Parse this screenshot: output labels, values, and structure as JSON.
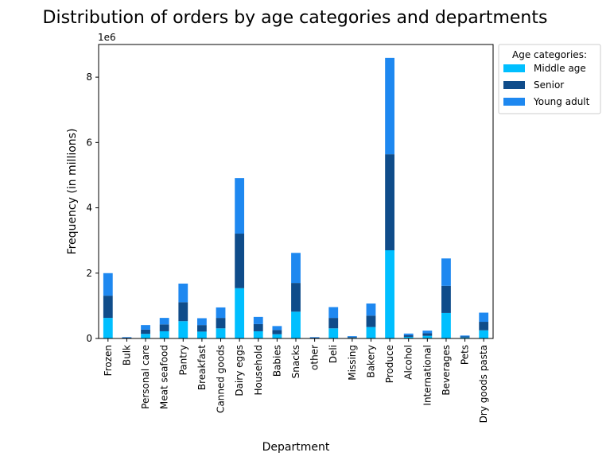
{
  "chart_data": {
    "type": "bar",
    "stacked": true,
    "title": "Distribution of orders by age categories and departments",
    "xlabel": "Department",
    "ylabel": "Frequency (in millions)",
    "y_multiplier_label": "1e6",
    "ylim": [
      0,
      9000000
    ],
    "yticks": [
      0,
      2000000,
      4000000,
      6000000,
      8000000
    ],
    "ytick_labels": [
      "0",
      "2",
      "4",
      "6",
      "8"
    ],
    "grid": false,
    "legend": {
      "title": "Age categories:",
      "placement": "outside-top-right"
    },
    "categories": [
      "Frozen",
      "Bulk",
      "Personal care",
      "Meat seafood",
      "Pantry",
      "Breakfast",
      "Canned goods",
      "Dairy eggs",
      "Household",
      "Babies",
      "Snacks",
      "other",
      "Deli",
      "Missing",
      "Bakery",
      "Produce",
      "Alcohol",
      "International",
      "Beverages",
      "Pets",
      "Dry goods pasta"
    ],
    "series": [
      {
        "name": "Middle age",
        "color": "#00bfff",
        "values": [
          630000,
          10000,
          140000,
          220000,
          530000,
          210000,
          310000,
          1540000,
          220000,
          130000,
          820000,
          10000,
          310000,
          20000,
          350000,
          2700000,
          50000,
          80000,
          780000,
          30000,
          250000
        ]
      },
      {
        "name": "Senior",
        "color": "#0f4c8a",
        "values": [
          680000,
          15000,
          130000,
          210000,
          580000,
          200000,
          320000,
          1670000,
          220000,
          130000,
          880000,
          15000,
          320000,
          25000,
          350000,
          2940000,
          50000,
          80000,
          830000,
          30000,
          260000
        ]
      },
      {
        "name": "Young adult",
        "color": "#1e88f0",
        "values": [
          690000,
          15000,
          140000,
          200000,
          570000,
          210000,
          320000,
          1700000,
          220000,
          120000,
          920000,
          15000,
          330000,
          25000,
          370000,
          2950000,
          50000,
          80000,
          840000,
          30000,
          280000
        ]
      }
    ]
  }
}
